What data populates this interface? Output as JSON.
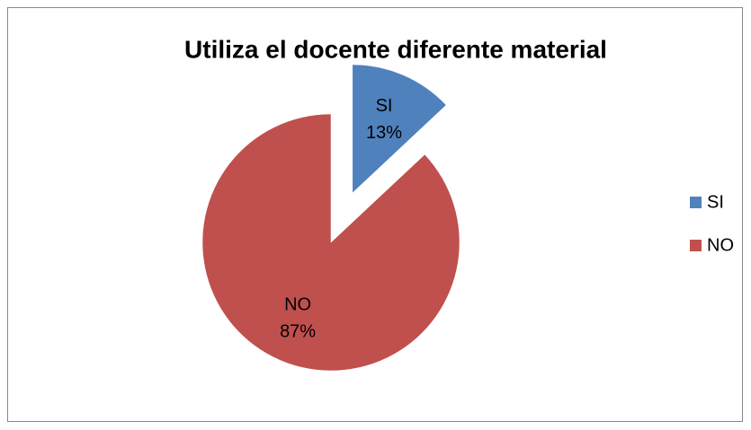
{
  "chart_data": {
    "type": "pie",
    "title": "Utiliza el docente diferente material",
    "categories": [
      "SI",
      "NO"
    ],
    "values": [
      13,
      87
    ],
    "value_labels": [
      "13%",
      "87%"
    ],
    "colors": [
      "#4f81bd",
      "#c0504d"
    ],
    "legend": "right"
  }
}
